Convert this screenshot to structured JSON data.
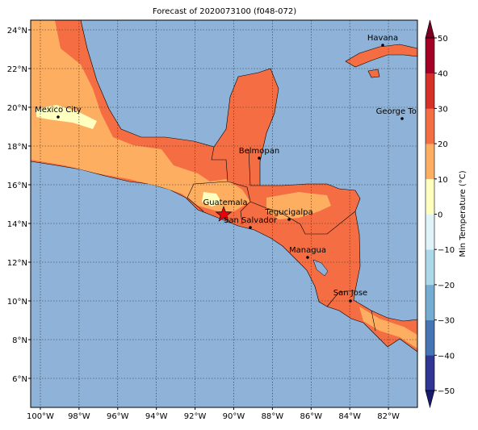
{
  "title": "Forecast of 2020073100 (f048-072)",
  "map": {
    "lonlim": [
      -100.5,
      -80.5
    ],
    "latlim": [
      4.5,
      24.5
    ],
    "lon_ticks": [
      {
        "value": -100,
        "label": "100°W"
      },
      {
        "value": -98,
        "label": "98°W"
      },
      {
        "value": -96,
        "label": "96°W"
      },
      {
        "value": -94,
        "label": "94°W"
      },
      {
        "value": -92,
        "label": "92°W"
      },
      {
        "value": -90,
        "label": "90°W"
      },
      {
        "value": -88,
        "label": "88°W"
      },
      {
        "value": -86,
        "label": "86°W"
      },
      {
        "value": -84,
        "label": "84°W"
      },
      {
        "value": -82,
        "label": "82°W"
      }
    ],
    "lat_ticks": [
      {
        "value": 24,
        "label": "24°N"
      },
      {
        "value": 22,
        "label": "22°N"
      },
      {
        "value": 20,
        "label": "20°N"
      },
      {
        "value": 18,
        "label": "18°N"
      },
      {
        "value": 16,
        "label": "16°N"
      },
      {
        "value": 14,
        "label": "14°N"
      },
      {
        "value": 12,
        "label": "12°N"
      },
      {
        "value": 10,
        "label": "10°N"
      },
      {
        "value": 8,
        "label": "8°N"
      },
      {
        "value": 6,
        "label": "6°N"
      }
    ],
    "grid": true,
    "cities": [
      {
        "name": "Havana"
      },
      {
        "name": "George Town"
      },
      {
        "name": "Mexico City"
      },
      {
        "name": "Belmopan"
      },
      {
        "name": "Guatemala"
      },
      {
        "name": "San Salvador"
      },
      {
        "name": "Tegucigalpa"
      },
      {
        "name": "Managua"
      },
      {
        "name": "San Jose"
      }
    ]
  },
  "colorbar": {
    "label": "Min Temperature (°C)",
    "lim": [
      -50,
      50
    ],
    "ticks": [
      {
        "value": -50,
        "label": "−50"
      },
      {
        "value": -40,
        "label": "−40"
      },
      {
        "value": -30,
        "label": "−30"
      },
      {
        "value": -20,
        "label": "−20"
      },
      {
        "value": -10,
        "label": "−10"
      },
      0,
      10,
      20,
      30,
      40,
      50
    ],
    "colors": [
      "#313695",
      "#4575b4",
      "#74add1",
      "#abd9e9",
      "#e0f3f8",
      "#ffffbf",
      "#fdae61",
      "#f46d43",
      "#d73027",
      "#a50026"
    ],
    "under_color": "#1a1a6e",
    "over_color": "#7a0020"
  }
}
